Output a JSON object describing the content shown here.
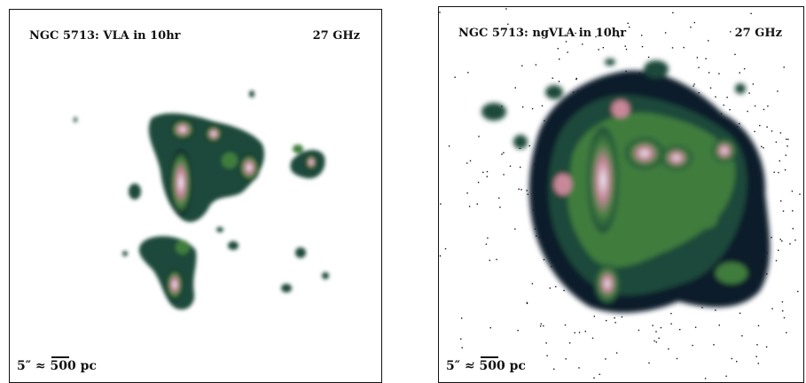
{
  "panels": {
    "left": {
      "title": "NGC 5713: VLA in 10hr",
      "frequency": "27 GHz",
      "scale_prefix": "5″ ≈",
      "scale_value": "500 pc"
    },
    "right": {
      "title": "NGC 5713: ngVLA in 10hr",
      "frequency": "27 GHz",
      "scale_prefix": "5″ ≈",
      "scale_value": "500 pc"
    }
  },
  "colormap": {
    "background": "#ffffff",
    "faint": "#0b1f2a",
    "low": "#1d4a3a",
    "mid": "#3f7d3c",
    "high": "#c9889a",
    "peak": "#eef4ff"
  }
}
